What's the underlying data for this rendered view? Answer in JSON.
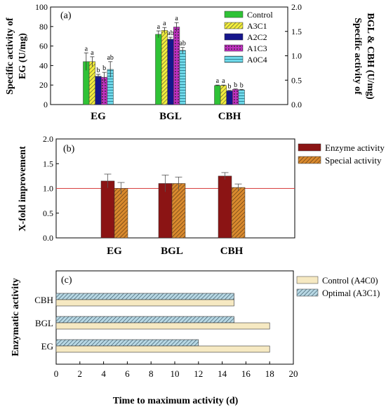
{
  "chart_data": [
    {
      "type": "bar",
      "panel_label": "(a)",
      "categories": [
        "EG",
        "BGL",
        "CBH"
      ],
      "ylabel_left": "Specific activity of EG (U/mg)",
      "ylabel_right": "Specific activity of BGL & CBH (U/mg)",
      "ylim_left": [
        0,
        100
      ],
      "ylim_right": [
        0,
        2.0
      ],
      "yticks_left": [
        "0",
        "20",
        "40",
        "60",
        "80",
        "100"
      ],
      "yticks_right": [
        "0.0",
        "0.5",
        "1.0",
        "1.5",
        "2.0"
      ],
      "note": "EG bars read on the left axis; BGL and CBH bars read on the right axis",
      "legend_position": "top-right",
      "series": [
        {
          "name": "Control",
          "color": "#2fc236",
          "pattern": "solid",
          "values": [
            44,
            1.44,
            0.39
          ],
          "errors": [
            9,
            0.07,
            0.01
          ],
          "letters": [
            "a",
            "a",
            "a"
          ]
        },
        {
          "name": "A3C1",
          "color": "#f3ee3a",
          "pattern": "hatch",
          "values": [
            44,
            1.52,
            0.39
          ],
          "errors": [
            5,
            0.06,
            0.01
          ],
          "letters": [
            "a",
            "a",
            "a"
          ]
        },
        {
          "name": "A2C2",
          "color": "#16168c",
          "pattern": "solid",
          "values": [
            29,
            1.34,
            0.28
          ],
          "errors": [
            2,
            0.04,
            0.01
          ],
          "letters": [
            "b",
            "ab",
            "b"
          ]
        },
        {
          "name": "A1C3",
          "color": "#c030c0",
          "pattern": "dots",
          "values": [
            28,
            1.59,
            0.31
          ],
          "errors": [
            5,
            0.09,
            0.01
          ],
          "letters": [
            "b",
            "a",
            "b"
          ]
        },
        {
          "name": "A0C4",
          "color": "#70d9ea",
          "pattern": "grid",
          "values": [
            36,
            1.11,
            0.3
          ],
          "errors": [
            8,
            0.06,
            0.01
          ],
          "letters": [
            "ab",
            "ab",
            "b"
          ]
        }
      ],
      "grid": false
    },
    {
      "type": "bar",
      "panel_label": "(b)",
      "categories": [
        "EG",
        "BGL",
        "CBH"
      ],
      "ylabel": "X-fold improvement",
      "ylim": [
        0,
        2.0
      ],
      "yticks": [
        "0.0",
        "0.5",
        "1.0",
        "1.5",
        "2.0"
      ],
      "reference_line": 1.0,
      "reference_color": "#d84040",
      "legend_position": "top-right",
      "series": [
        {
          "name": "Enzyme activity",
          "color": "#8b1414",
          "pattern": "solid",
          "values": [
            1.15,
            1.1,
            1.25
          ],
          "errors": [
            0.14,
            0.17,
            0.07
          ]
        },
        {
          "name": "Special activity",
          "color": "#d98a2e",
          "pattern": "hatch",
          "values": [
            1.0,
            1.1,
            1.02
          ],
          "errors": [
            0.12,
            0.13,
            0.07
          ]
        }
      ],
      "grid": false
    },
    {
      "type": "bar",
      "orientation": "horizontal",
      "panel_label": "(c)",
      "categories": [
        "EG",
        "BGL",
        "CBH"
      ],
      "xlabel": "Time to maximum activity (d)",
      "ylabel": "Enzymatic activity",
      "xlim": [
        0,
        20
      ],
      "xticks": [
        "0",
        "2",
        "4",
        "6",
        "8",
        "10",
        "12",
        "14",
        "16",
        "18",
        "20"
      ],
      "legend_position": "top-right",
      "series": [
        {
          "name": "Control  (A4C0)",
          "color": "#f6e9c2",
          "pattern": "solid",
          "values": [
            18,
            18,
            15
          ]
        },
        {
          "name": "Optimal (A3C1)",
          "color": "#b8d8e4",
          "pattern": "hatch",
          "values": [
            12,
            15,
            15
          ]
        }
      ],
      "grid": false
    }
  ]
}
